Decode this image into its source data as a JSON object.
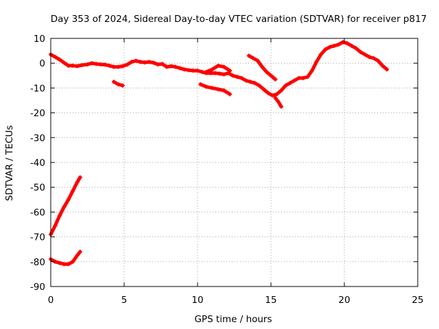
{
  "chart_data": {
    "type": "scatter",
    "title": "Day 353 of 2024, Sidereal Day-to-day VTEC variation (SDTVAR) for receiver p817",
    "xlabel": "GPS time / hours",
    "ylabel": "SDTVAR / TECUs",
    "xlim": [
      0,
      25
    ],
    "ylim": [
      -90,
      10
    ],
    "xticks": [
      0,
      5,
      10,
      15,
      20,
      25
    ],
    "yticks": [
      -90,
      -80,
      -70,
      -60,
      -50,
      -40,
      -30,
      -20,
      -10,
      0,
      10
    ],
    "grid": true,
    "legend": "none",
    "series": [
      {
        "name": "main-trace",
        "color": "#ff0000",
        "x": [
          0,
          0.3,
          0.6,
          0.9,
          1.2,
          1.5,
          1.8,
          2.1,
          2.5,
          2.8,
          3.1,
          3.4,
          3.7,
          4.0,
          4.3,
          4.6,
          4.9,
          5.2,
          5.5,
          5.8,
          6.1,
          6.4,
          6.7,
          7.0,
          7.3,
          7.6,
          7.9,
          8.2,
          8.5,
          8.8,
          9.1,
          9.4,
          9.7,
          10.0,
          10.3,
          10.6,
          10.9,
          11.2,
          11.5,
          11.8,
          12.1,
          12.4,
          12.7,
          13.0,
          13.3,
          13.6,
          13.9,
          14.2,
          14.5,
          14.8,
          15.1,
          15.4,
          15.7,
          16.0,
          16.3,
          16.6,
          16.9,
          17.2,
          17.5,
          17.8,
          18.1,
          18.4,
          18.7,
          19.0,
          19.3,
          19.6,
          19.9,
          20.2,
          20.5,
          20.8,
          21.1,
          21.4,
          21.7,
          22.0,
          22.3,
          22.6,
          22.9
        ],
        "values": [
          3.5,
          2.5,
          1.5,
          0.2,
          -1.0,
          -1.0,
          -1.2,
          -0.8,
          -0.5,
          0.0,
          -0.3,
          -0.5,
          -0.6,
          -1.0,
          -1.5,
          -1.5,
          -1.2,
          -0.6,
          0.5,
          1.0,
          0.5,
          0.3,
          0.5,
          0.2,
          -0.5,
          -0.3,
          -1.5,
          -1.2,
          -1.5,
          -2.0,
          -2.5,
          -2.8,
          -3.0,
          -3.0,
          -3.5,
          -4.0,
          -4.0,
          -4.0,
          -4.2,
          -4.5,
          -4.0,
          -5.0,
          -5.5,
          -6.0,
          -7.0,
          -7.5,
          -8.0,
          -9.0,
          -10.5,
          -12.0,
          -13.0,
          -12.5,
          -11.0,
          -9.0,
          -8.0,
          -7.0,
          -6.0,
          -6.0,
          -5.5,
          -3.0,
          0.5,
          3.5,
          5.5,
          6.5,
          7.0,
          7.5,
          8.5,
          8.0,
          7.0,
          6.0,
          4.5,
          3.5,
          2.5,
          2.0,
          1.0,
          -1.0,
          -2.5
        ]
      },
      {
        "name": "steep-segment",
        "color": "#ff0000",
        "x": [
          0.0,
          0.3,
          0.6,
          0.9,
          1.2,
          1.5,
          1.8,
          2.0
        ],
        "values": [
          -69,
          -65.5,
          -61.5,
          -58,
          -55,
          -51.5,
          -48,
          -46
        ]
      },
      {
        "name": "low-segment",
        "color": "#ff0000",
        "x": [
          0.0,
          0.3,
          0.6,
          0.9,
          1.2,
          1.5,
          1.8,
          2.0
        ],
        "values": [
          -79,
          -80,
          -80.5,
          -81,
          -81,
          -80,
          -77.5,
          -76
        ]
      },
      {
        "name": "segment-4-5h",
        "color": "#ff0000",
        "x": [
          4.3,
          4.6,
          4.9
        ],
        "values": [
          -7.5,
          -8.5,
          -9.0
        ]
      },
      {
        "name": "segment-10-12h",
        "color": "#ff0000",
        "x": [
          10.2,
          10.6,
          11.0,
          11.4,
          11.8,
          12.2
        ],
        "values": [
          -8.5,
          -9.5,
          -10.0,
          -10.5,
          -11.0,
          -12.5
        ]
      },
      {
        "name": "bump-11h",
        "color": "#ff0000",
        "x": [
          10.6,
          11.0,
          11.4,
          11.8,
          12.2
        ],
        "values": [
          -3.5,
          -2.5,
          -1.0,
          -1.5,
          -3.0
        ]
      },
      {
        "name": "segment-13-15h",
        "color": "#ff0000",
        "x": [
          13.5,
          13.8,
          14.1,
          14.4,
          14.7,
          15.0,
          15.3
        ],
        "values": [
          3.0,
          2.0,
          1.0,
          -1.5,
          -3.5,
          -5.0,
          -6.5
        ]
      },
      {
        "name": "tail-15-16h",
        "color": "#ff0000",
        "x": [
          15.3,
          15.5,
          15.7
        ],
        "values": [
          -14.0,
          -15.5,
          -17.5
        ]
      }
    ]
  }
}
